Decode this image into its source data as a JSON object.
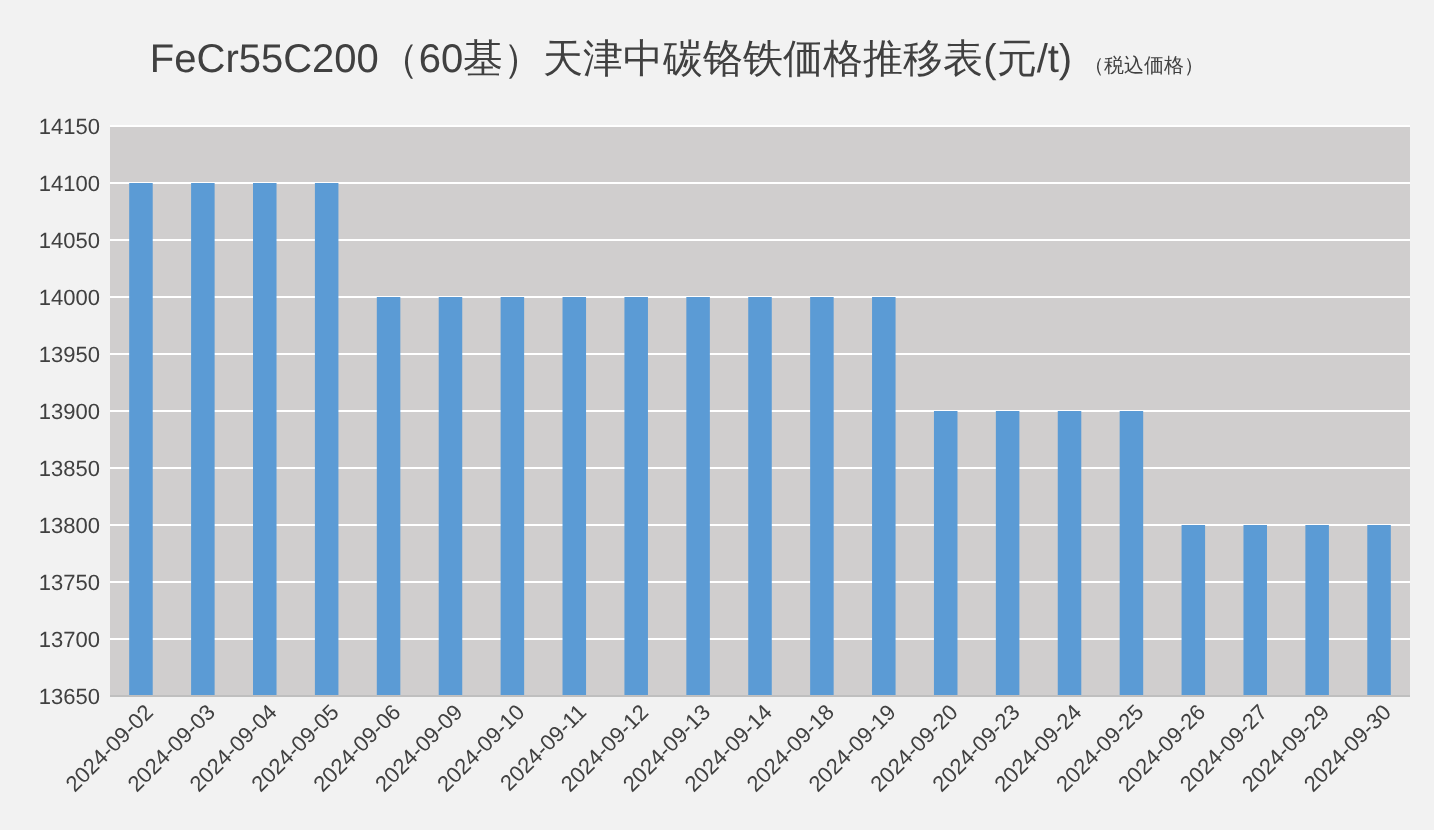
{
  "chart_data": {
    "type": "bar",
    "title": "FeCr55C200（60基）天津中碳铬铁価格推移表(元/t)",
    "subtitle": "（税込価格）",
    "categories": [
      "2024-09-02",
      "2024-09-03",
      "2024-09-04",
      "2024-09-05",
      "2024-09-06",
      "2024-09-09",
      "2024-09-10",
      "2024-09-11",
      "2024-09-12",
      "2024-09-13",
      "2024-09-14",
      "2024-09-18",
      "2024-09-19",
      "2024-09-20",
      "2024-09-23",
      "2024-09-24",
      "2024-09-25",
      "2024-09-26",
      "2024-09-27",
      "2024-09-29",
      "2024-09-30"
    ],
    "values": [
      14100,
      14100,
      14100,
      14100,
      14000,
      14000,
      14000,
      14000,
      14000,
      14000,
      14000,
      14000,
      14000,
      13900,
      13900,
      13900,
      13900,
      13800,
      13800,
      13800,
      13800
    ],
    "color": "#5b9bd5",
    "ylim": [
      13650,
      14150
    ],
    "yticks": [
      13650,
      13700,
      13750,
      13800,
      13850,
      13900,
      13950,
      14000,
      14050,
      14100,
      14150
    ],
    "grid": "y"
  }
}
